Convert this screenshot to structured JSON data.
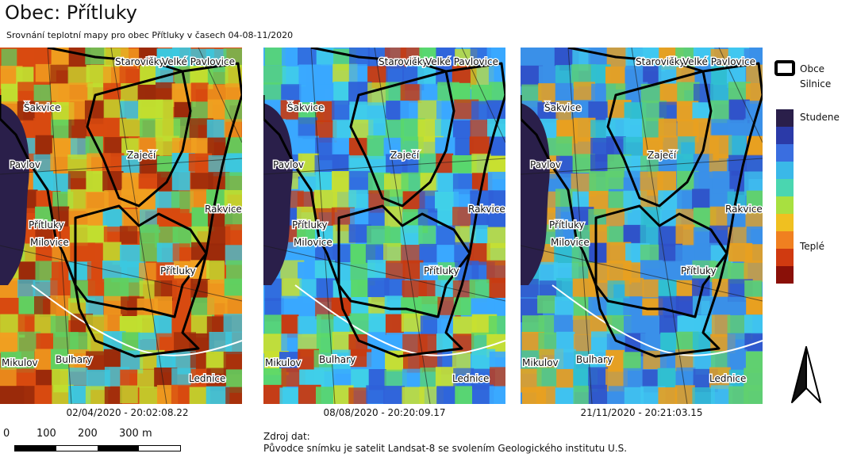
{
  "header": {
    "title": "Obec: Přítluky",
    "subtitle": "Srovnání teplotní mapy pro obec Přítluky v časech 04-08-11/2020"
  },
  "maps": [
    {
      "caption": "02/04/2020 - 20:02:08.22",
      "palette": [
        "#d84a10",
        "#f0a020",
        "#c0e030",
        "#3bc8e0",
        "#9a2a0a",
        "#60d060"
      ],
      "labels": [
        "Starovičky",
        "Velké Pavlovice",
        "Šakvice",
        "Zaječí",
        "Pavlov",
        "Rakvice",
        "Přítluky",
        "Milovice",
        "Přítluky",
        "Mikulov",
        "Bulhary",
        "Lednice"
      ]
    },
    {
      "caption": "08/08/2020 - 20:20:09.17",
      "palette": [
        "#3aa8ff",
        "#40d0e8",
        "#5ad86a",
        "#c8e030",
        "#c83a10",
        "#2f60d8"
      ],
      "labels": [
        "Starovičky",
        "Velké Pavlovice",
        "Šakvice",
        "Zaječí",
        "Pavlov",
        "Rakvice",
        "Přítluky",
        "Milovice",
        "Přítluky",
        "Mikulov",
        "Bulhary",
        "Lednice"
      ]
    },
    {
      "caption": "21/11/2020 - 20:21:03.15",
      "palette": [
        "#3a90e8",
        "#40c8f0",
        "#60d070",
        "#2f50c8",
        "#e8a020",
        "#30c0d0"
      ],
      "labels": [
        "Starovičky",
        "Velké Pavlovice",
        "Šakvice",
        "Zaječí",
        "Pavlov",
        "Rakvice",
        "Přítluky",
        "Milovice",
        "Přítluky",
        "Mikulov",
        "Bulhary",
        "Lednice"
      ]
    }
  ],
  "legend": {
    "boundary_label": "Obce",
    "roads_label": "Silnice",
    "cold_label": "Studene",
    "warm_label": "Teplé",
    "ramp": [
      "#2a1f4a",
      "#2b3aa8",
      "#3a6ee0",
      "#3ab8e8",
      "#4ad6b0",
      "#a8e040",
      "#f0c020",
      "#f08020",
      "#d03a10",
      "#8a1008"
    ]
  },
  "scalebar": {
    "labels": [
      "0",
      "100",
      "200",
      "300 m"
    ]
  },
  "source": {
    "heading": "Zdroj dat:",
    "text": "Původce snímku je satelit Landsat-8 se svolením Geologického institutu U.S."
  },
  "north_arrow": {
    "icon": "north-arrow-icon"
  }
}
